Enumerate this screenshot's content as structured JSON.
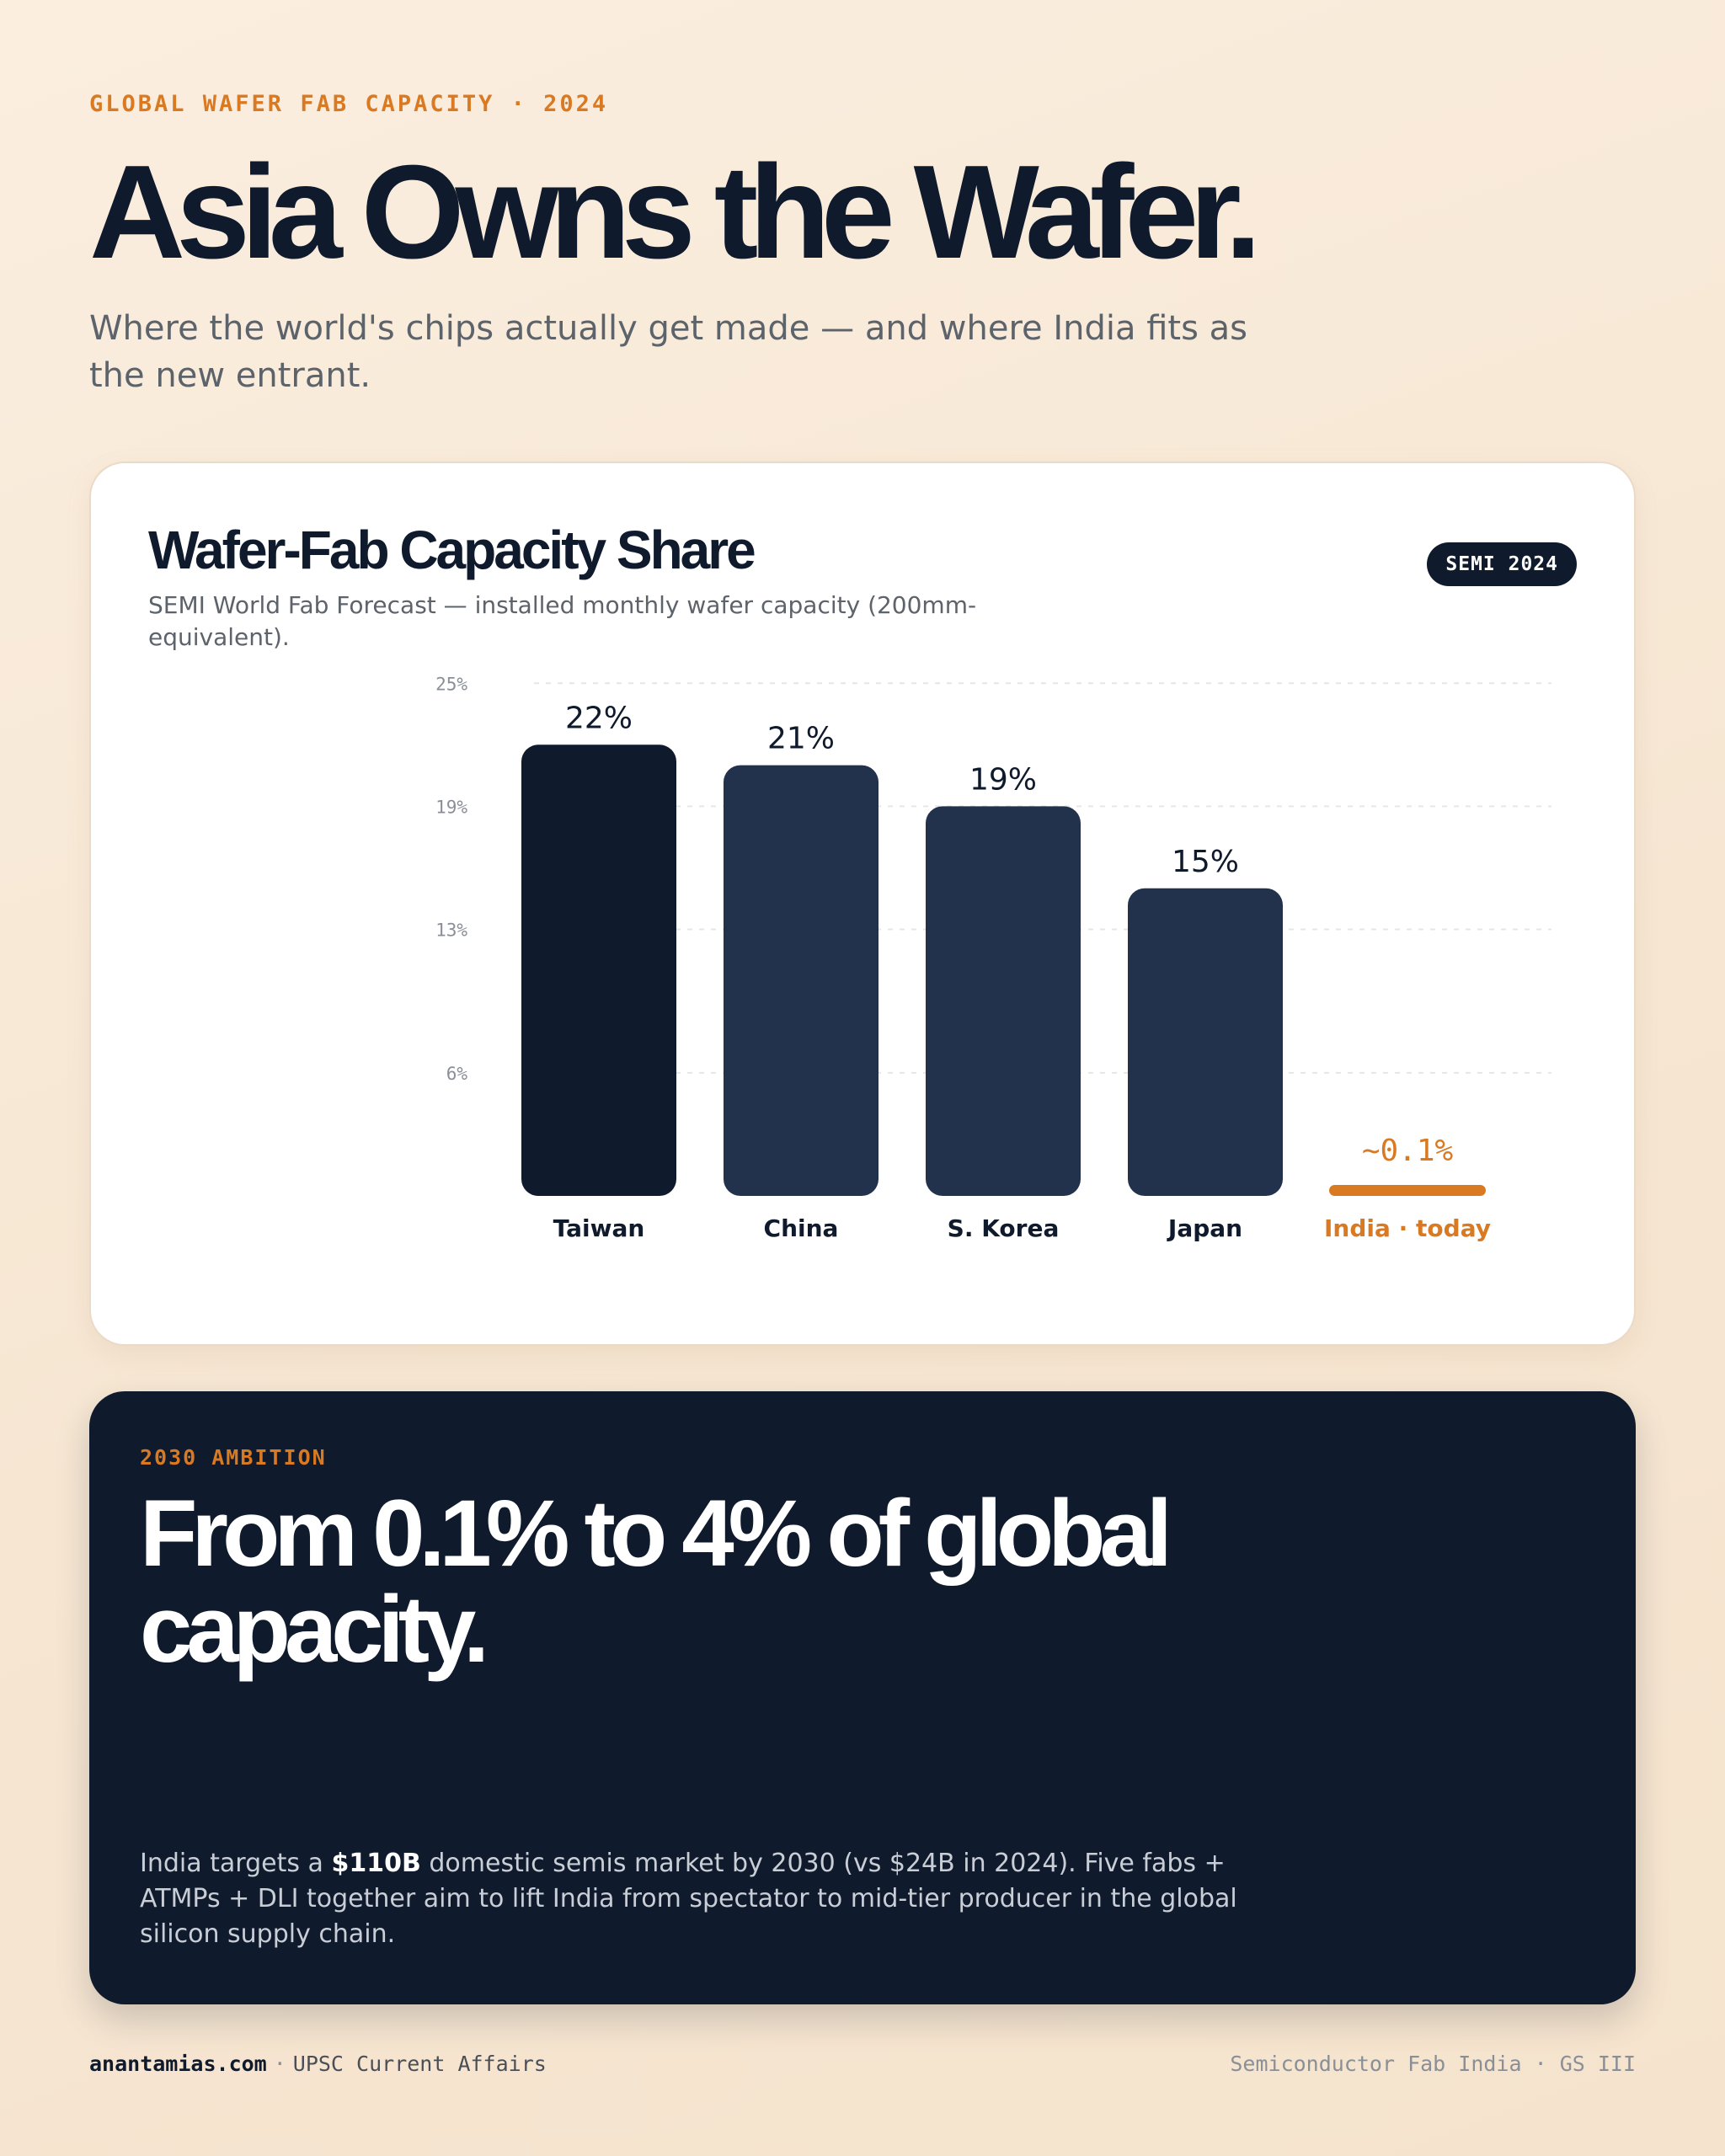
{
  "header": {
    "eyebrow": "GLOBAL WAFER FAB CAPACITY · 2024",
    "headline": "Asia Owns the Wafer.",
    "subhead": "Where the world's chips actually get made — and where India fits as the new entrant."
  },
  "chart_card": {
    "title": "Wafer-Fab Capacity Share",
    "subtitle": "SEMI World Fab Forecast — installed monthly wafer capacity (200mm-equivalent).",
    "badge": "SEMI 2024"
  },
  "chart_data": {
    "type": "bar",
    "categories": [
      "Taiwan",
      "China",
      "S. Korea",
      "Japan",
      "India · today"
    ],
    "values": [
      22,
      21,
      19,
      15,
      0.1
    ],
    "value_labels": [
      "22%",
      "21%",
      "19%",
      "15%",
      "~0.1%"
    ],
    "yticks": [
      "25%",
      "19%",
      "13%",
      "6%"
    ],
    "ytick_values": [
      25,
      19,
      13,
      6
    ],
    "ylim": [
      0,
      25
    ],
    "grid": true,
    "colors": {
      "top_bar": "#0f1b2d",
      "bar": "#22324c",
      "highlight": "#d97a22",
      "grid": "#e6e6e6",
      "tick": "#8a8f97"
    },
    "highlight_index": 4
  },
  "ambition": {
    "eyebrow": "2030 AMBITION",
    "headline": "From 0.1% to 4% of global capacity.",
    "body_pre": "India targets a ",
    "body_bold": "$110B",
    "body_post": " domestic semis market by 2030 (vs $24B in 2024). Five fabs + ATMPs + DLI together aim to lift India from spectator to mid-tier producer in the global silicon supply chain."
  },
  "footer": {
    "brand": "anantamias.com",
    "separator": "·",
    "tagline": "UPSC Current Affairs",
    "right": "Semiconductor Fab India · GS III"
  }
}
